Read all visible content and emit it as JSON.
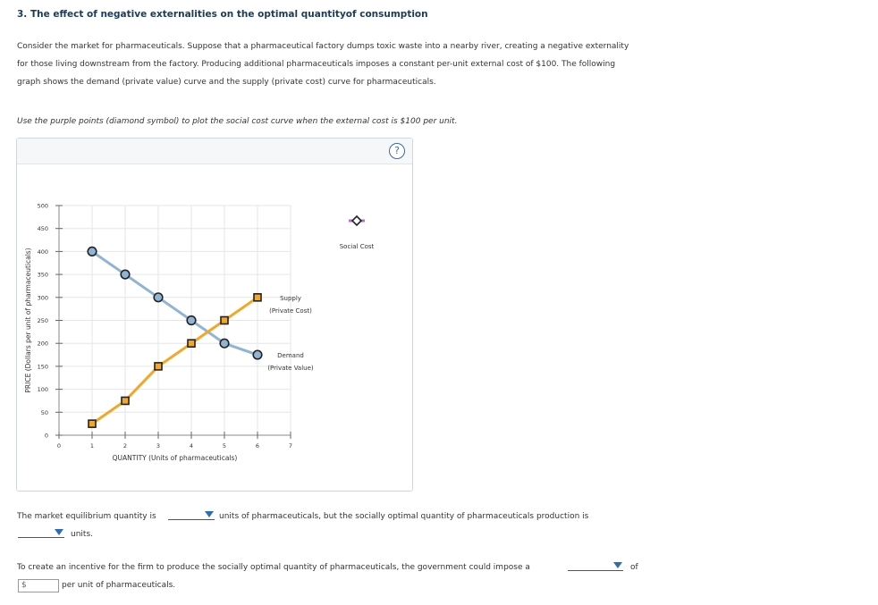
{
  "header": {
    "title": "3. The effect of negative externalities on the optimal quantityof consumption"
  },
  "intro": {
    "line1": "Consider the market for pharmaceuticals. Suppose that a pharmaceutical factory dumps toxic waste into a nearby river, creating a negative externality",
    "line2": "for those living downstream from the factory. Producing additional pharmaceuticals imposes a constant per-unit external cost of $100. The following",
    "line3": "graph shows the demand (private value) curve and the supply (private cost) curve for pharmaceuticals."
  },
  "instruction": "Use the purple points (diamond symbol) to plot the social cost curve when the external cost is $100 per unit.",
  "help_label": "?",
  "chart_data": {
    "type": "line",
    "xlabel": "QUANTITY (Units of pharmaceuticals)",
    "ylabel": "PRICE (Dollars per unit of pharmaceuticals)",
    "xlim": [
      0,
      7
    ],
    "ylim": [
      0,
      500
    ],
    "x_ticks": [
      "0",
      "1",
      "2",
      "3",
      "4",
      "5",
      "6",
      "7"
    ],
    "y_ticks": [
      "0",
      "50",
      "100",
      "150",
      "200",
      "250",
      "300",
      "350",
      "400",
      "450",
      "500"
    ],
    "grid": true,
    "series": [
      {
        "name": "Demand",
        "name2": "(Private Value)",
        "color": "#8fb4d6",
        "marker": "circle",
        "x": [
          1,
          2,
          3,
          4,
          5,
          6
        ],
        "y": [
          400,
          350,
          300,
          250,
          200,
          175
        ]
      },
      {
        "name": "Supply",
        "name2": "(Private Cost)",
        "color": "#f5a623",
        "marker": "square",
        "x": [
          1,
          2,
          3,
          4,
          5,
          6
        ],
        "y": [
          25,
          75,
          150,
          200,
          250,
          300
        ]
      }
    ],
    "tool": {
      "name": "Social Cost",
      "color": "#b46fd1",
      "marker": "diamond"
    }
  },
  "questions": {
    "q1_prefix": "The market equilibrium quantity is",
    "q1_suffix": "units of pharmaceuticals, but the socially optimal quantity of pharmaceuticals production is",
    "q1_end": "units.",
    "q2_prefix": "To create an incentive for the firm to produce the socially optimal quantity of pharmaceuticals, the government could impose a",
    "q2_of": "of",
    "q2_currency": "$",
    "q2_end": "per unit of pharmaceuticals."
  }
}
